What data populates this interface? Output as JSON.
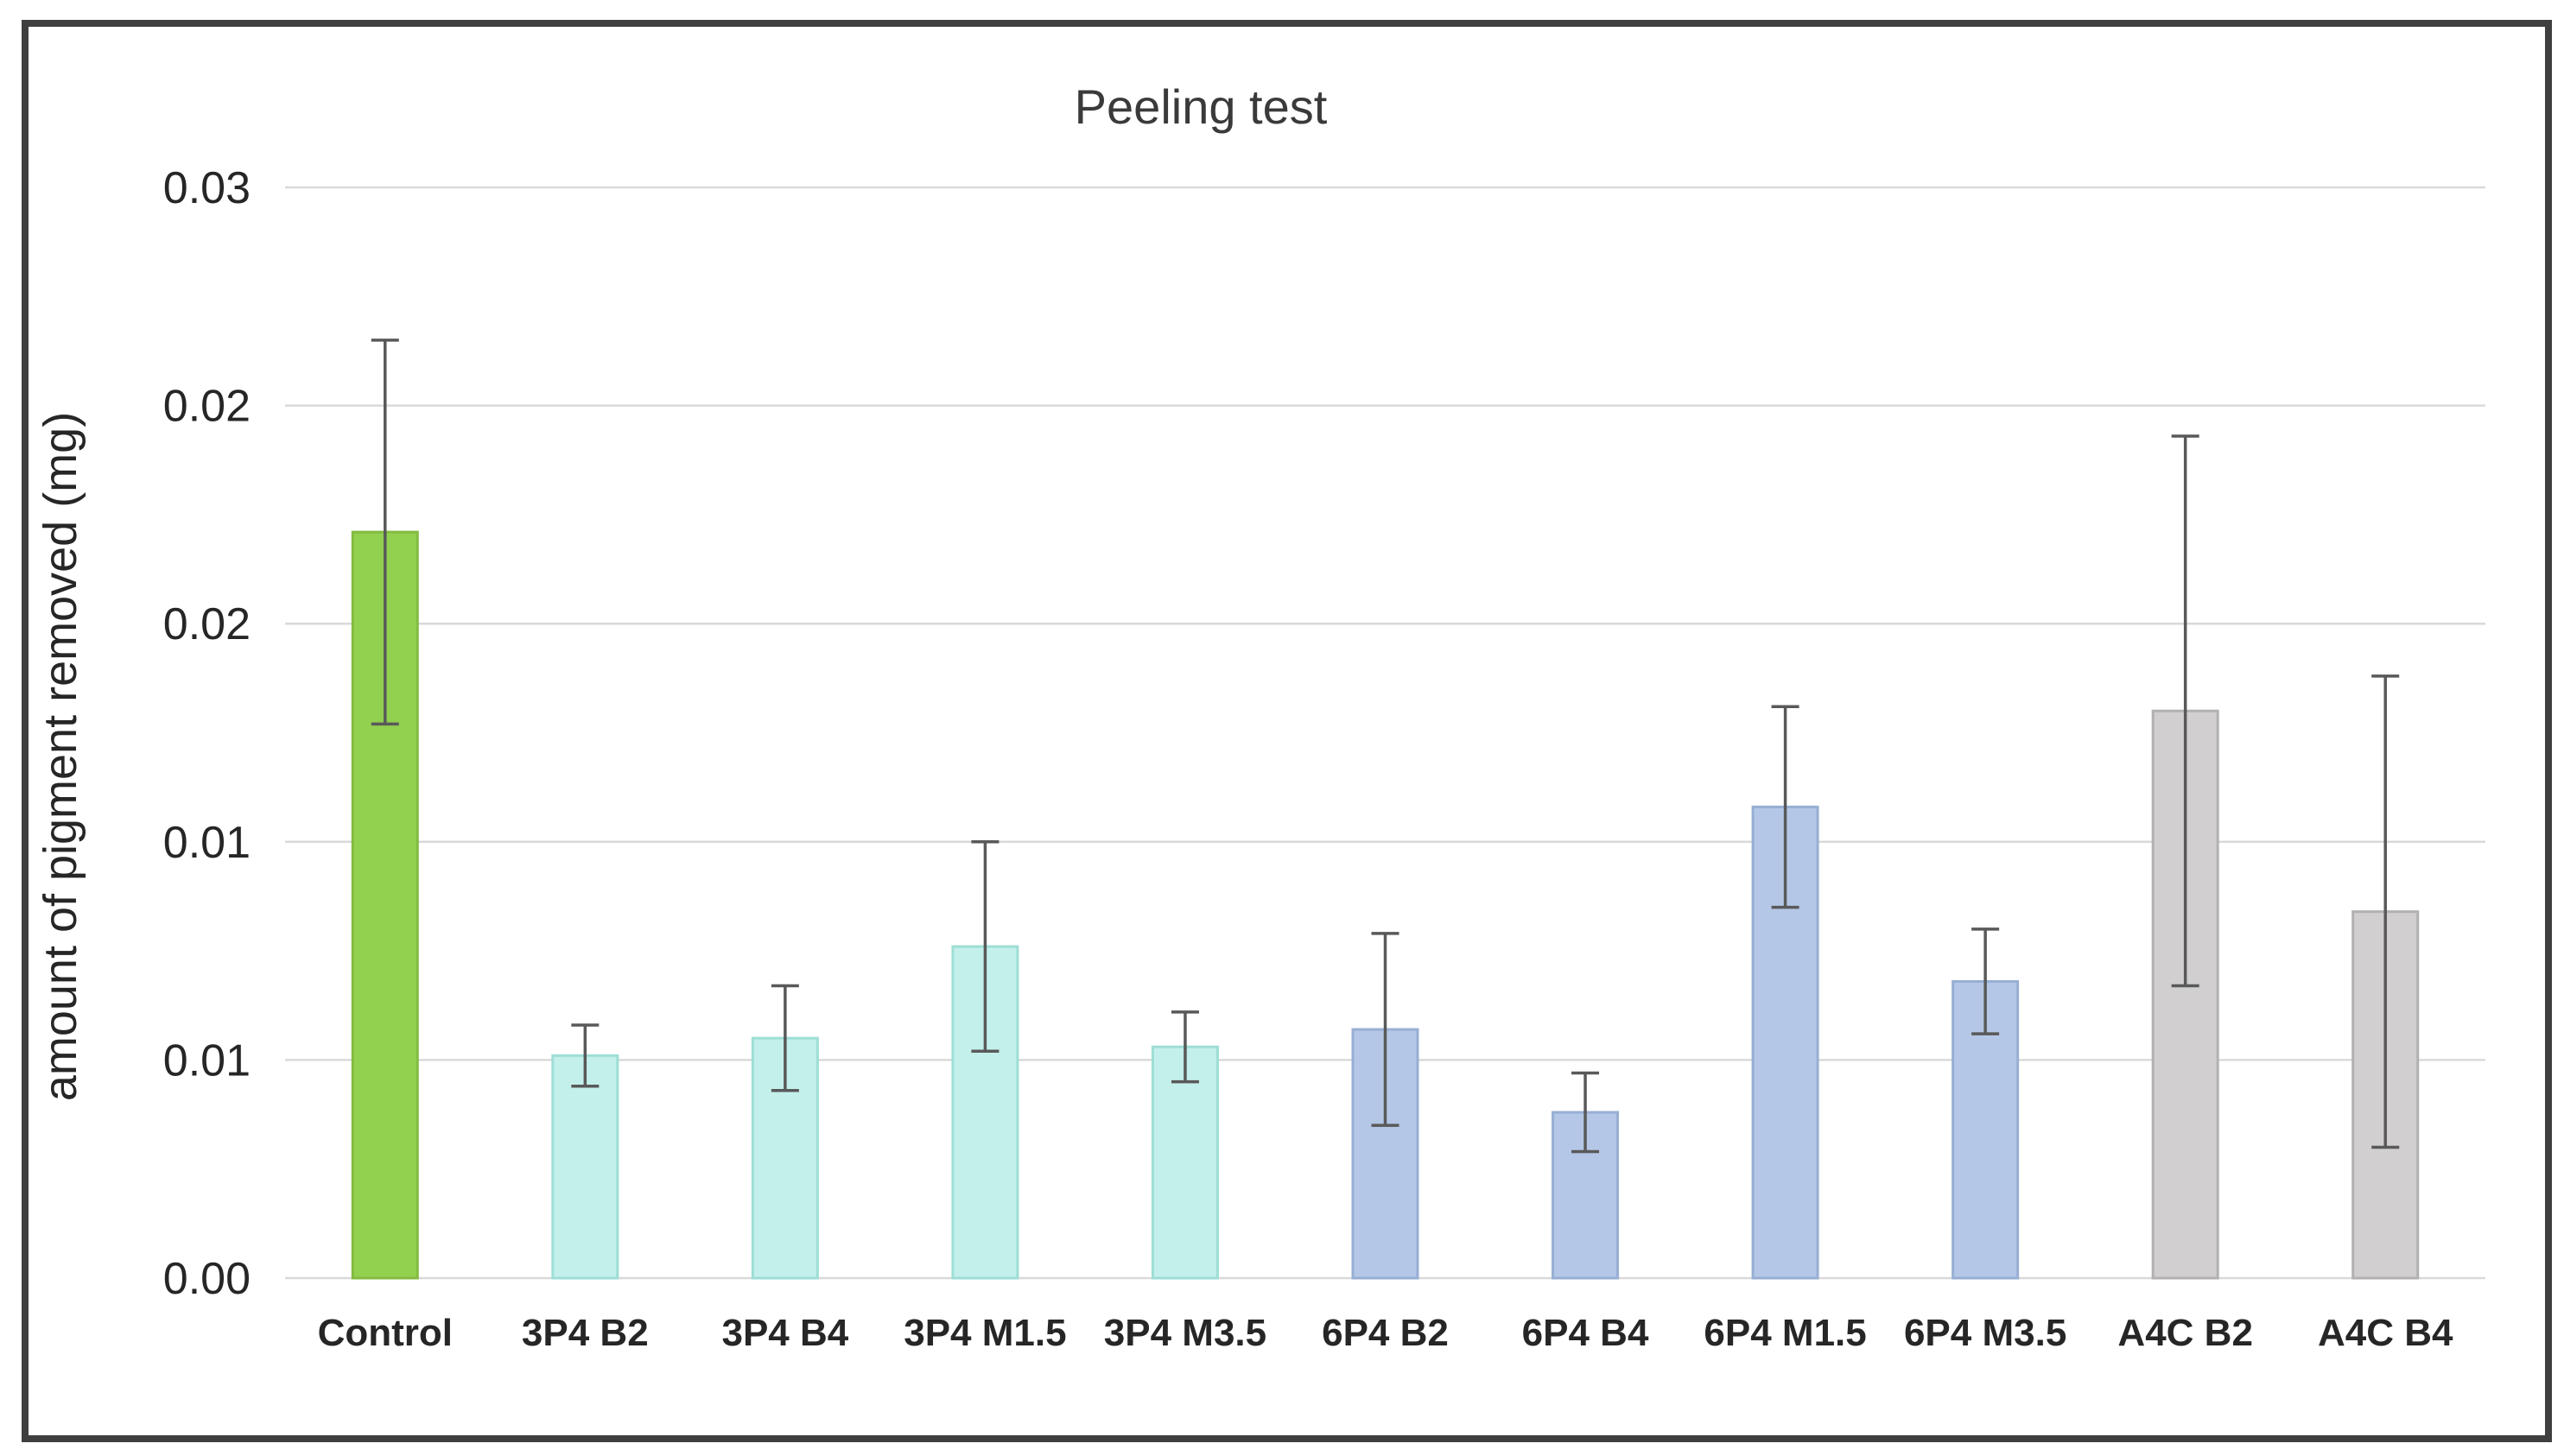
{
  "figure": {
    "title": "Peeling test",
    "y_axis_title": "amount of pigment removed (mg)",
    "x_axis_title": "",
    "legend": "none"
  },
  "colors": {
    "background": "#ffffff",
    "frame_border": "#3f3f3f",
    "gridline": "#d9d9d9",
    "axis_line": "#d9d9d9",
    "error_bar": "#595959",
    "title_text": "#3a3a3a",
    "tick_text": "#262626",
    "group_control_fill": "#92d050",
    "group_control_edge": "#83bb41",
    "group_3p4_fill": "#c3f0ea",
    "group_3p4_edge": "#9eded6",
    "group_6p4_fill": "#b4c7e7",
    "group_6p4_edge": "#98afd4",
    "group_a4c_fill": "#d1cfcf",
    "group_a4c_edge": "#b3b0b0"
  },
  "chart_data": {
    "type": "bar",
    "title": "Peeling test",
    "xlabel": "",
    "ylabel": "amount of pigment removed (mg)",
    "ylim": [
      0,
      0.025
    ],
    "ytick_step": 0.005,
    "ytick_values_bottom_to_top": [
      0,
      0.005,
      0.01,
      0.015,
      0.02,
      0.025
    ],
    "ytick_display_labels_bottom_to_top": [
      "0.00",
      "0.01",
      "0.01",
      "0.02",
      "0.02",
      "0.03"
    ],
    "grid": true,
    "legend_position": "none",
    "categories": [
      "Control",
      "3P4 B2",
      "3P4 B4",
      "3P4 M1.5",
      "3P4 M3.5",
      "6P4 B2",
      "6P4 B4",
      "6P4 M1.5",
      "6P4 M3.5",
      "A4C B2",
      "A4C B4"
    ],
    "values": [
      0.0171,
      0.0051,
      0.0055,
      0.0076,
      0.0053,
      0.0057,
      0.0038,
      0.0108,
      0.0068,
      0.013,
      0.0084
    ],
    "errors": [
      0.0044,
      0.0007,
      0.0012,
      0.0024,
      0.0008,
      0.0022,
      0.0009,
      0.0023,
      0.0012,
      0.0063,
      0.0054
    ],
    "bar_groups": [
      "control",
      "3p4",
      "3p4",
      "3p4",
      "3p4",
      "6p4",
      "6p4",
      "6p4",
      "6p4",
      "a4c",
      "a4c"
    ],
    "bar_fill_colors": [
      "#92d050",
      "#c3f0ea",
      "#c3f0ea",
      "#c3f0ea",
      "#c3f0ea",
      "#b4c7e7",
      "#b4c7e7",
      "#b4c7e7",
      "#b4c7e7",
      "#d1cfcf",
      "#d1cfcf"
    ],
    "bar_edge_colors": [
      "#83bb41",
      "#9eded6",
      "#9eded6",
      "#9eded6",
      "#9eded6",
      "#98afd4",
      "#98afd4",
      "#98afd4",
      "#98afd4",
      "#b3b0b0",
      "#b3b0b0"
    ]
  }
}
